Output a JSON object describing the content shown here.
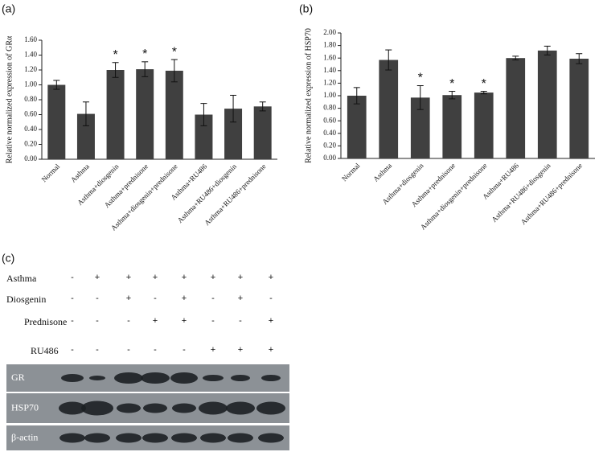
{
  "chart_data": [
    {
      "type": "bar",
      "panel_label": "(a)",
      "y_label": "Relative normalized expression of GRα",
      "categories": [
        "Normal",
        "Asthma",
        "Asthma+diosgenin",
        "Asthma+prednisone",
        "Asthma+diosgenin+prednisone",
        "Asthma+RU486",
        "Asthma+RU486+diosgenin",
        "Asthma+RU486+prednisone"
      ],
      "values": [
        1.0,
        0.61,
        1.2,
        1.21,
        1.19,
        0.6,
        0.68,
        0.71
      ],
      "errors": [
        0.06,
        0.16,
        0.1,
        0.1,
        0.15,
        0.15,
        0.18,
        0.06
      ],
      "markers": [
        null,
        null,
        "*",
        "*",
        "*",
        null,
        null,
        null
      ],
      "color": "#404040",
      "ylim": [
        0,
        1.6
      ],
      "yticks": [
        {
          "value": 0,
          "label": "0.00"
        },
        {
          "value": 0.2,
          "label": "0.20"
        },
        {
          "value": 0.4,
          "label": "0.40"
        },
        {
          "value": 0.6,
          "label": "0.60"
        },
        {
          "value": 0.8,
          "label": "0.80"
        },
        {
          "value": 1.0,
          "label": "1.00"
        },
        {
          "value": 1.2,
          "label": "1.20"
        },
        {
          "value": 1.4,
          "label": "1.40"
        },
        {
          "value": 1.6,
          "label": "1.60"
        }
      ]
    },
    {
      "type": "bar",
      "panel_label": "(b)",
      "y_label": "Relative normalized expression of HSP70",
      "categories": [
        "Normal",
        "Asthma",
        "Asthma+diosgenin",
        "Asthma+prednisone",
        "Asthma+diosgenin+prednisone",
        "Asthma+RU486",
        "Asthma+RU486+diosgenin",
        "Asthma+RU486+prednisone"
      ],
      "values": [
        1.0,
        1.57,
        0.97,
        1.01,
        1.05,
        1.6,
        1.72,
        1.59
      ],
      "errors": [
        0.13,
        0.16,
        0.19,
        0.06,
        0.02,
        0.03,
        0.07,
        0.08
      ],
      "markers": [
        null,
        null,
        "*",
        "*",
        "*",
        null,
        null,
        null
      ],
      "color": "#404040",
      "ylim": [
        0,
        2.0
      ],
      "yticks": [
        {
          "value": 0,
          "label": "0.00"
        },
        {
          "value": 0.2,
          "label": "0.20"
        },
        {
          "value": 0.4,
          "label": "0.40"
        },
        {
          "value": 0.6,
          "label": "0.60"
        },
        {
          "value": 0.8,
          "label": "0.80"
        },
        {
          "value": 1.0,
          "label": "1.00"
        },
        {
          "value": 1.2,
          "label": "1.20"
        },
        {
          "value": 1.4,
          "label": "1.40"
        },
        {
          "value": 1.6,
          "label": "1.60"
        },
        {
          "value": 1.8,
          "label": "1.80"
        },
        {
          "value": 2.0,
          "label": "2.00"
        }
      ]
    }
  ],
  "panel_c": {
    "label": "(c)",
    "rows": [
      {
        "label": "Asthma",
        "signs": [
          "-",
          "+",
          "+",
          "+",
          "+",
          "+",
          "+",
          "+"
        ]
      },
      {
        "label": "Diosgenin",
        "signs": [
          "-",
          "-",
          "+",
          "-",
          "+",
          "-",
          "+",
          "-"
        ]
      },
      {
        "label": "Prednisone",
        "signs": [
          "-",
          "-",
          "-",
          "+",
          "+",
          "-",
          "-",
          "+"
        ]
      },
      {
        "label": "RU486",
        "signs": [
          "-",
          "-",
          "-",
          "-",
          "-",
          "+",
          "+",
          "+"
        ]
      }
    ],
    "blots": [
      "GR",
      "HSP70",
      "β-actin"
    ]
  }
}
